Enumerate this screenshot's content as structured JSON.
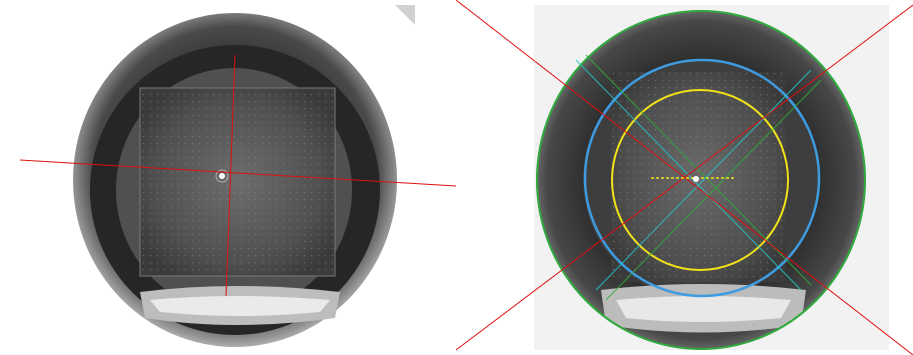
{
  "image": {
    "panels": [
      {
        "id": "left",
        "description_visible": "",
        "overlay_colors": {
          "crosshair": "#e01010"
        }
      },
      {
        "id": "right",
        "overlay_colors": {
          "diagonal": "#e01010",
          "outer_circle": "#2faa3c",
          "middle_circle": "#3f9be0",
          "inner_circle": "#f2e21a",
          "center_dash": "#f2e21a",
          "cyan_lines": "#23c4c4",
          "green_lines": "#2faa3c"
        }
      }
    ]
  }
}
